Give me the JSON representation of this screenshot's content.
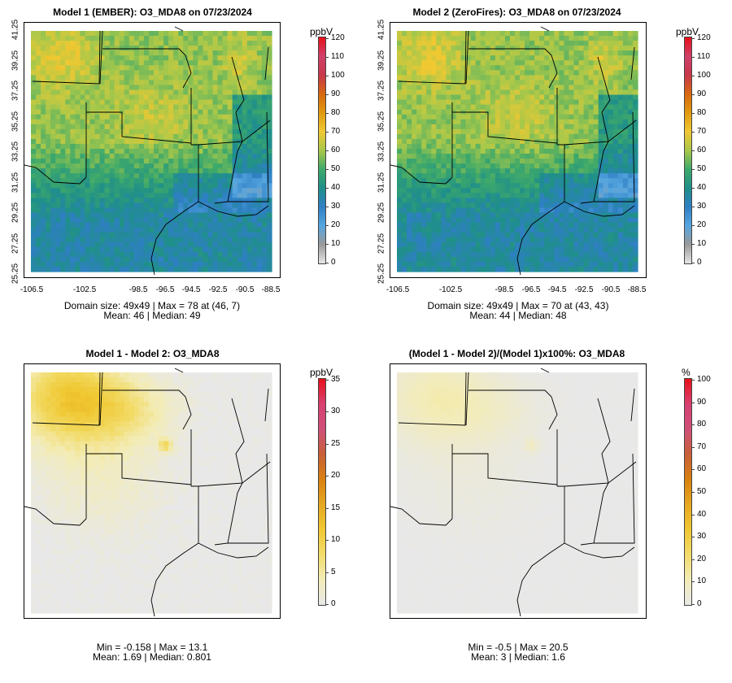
{
  "panels": [
    {
      "id": "p1",
      "title": "Model 1 (EMBER): O3_MDA8 on 07/23/2024",
      "unit": "ppbV",
      "colorbar": "ozone",
      "ticks": [
        "120",
        "110",
        "100",
        "90",
        "80",
        "70",
        "60",
        "50",
        "40",
        "30",
        "20",
        "10",
        "0"
      ],
      "yticks": [
        "41.25",
        "39.25",
        "37.25",
        "35.25",
        "33.25",
        "31.25",
        "29.25",
        "27.25",
        "25.25"
      ],
      "xticks": [
        "-106.5",
        "-102.5",
        "-98.5",
        "-96.5",
        "-94.5",
        "-92.5",
        "-90.5",
        "-88.5"
      ],
      "stats1": "Domain size: 49x49 | Max = 78 at (46, 7)",
      "stats2": "Mean: 46 |  Median: 49",
      "max_value": 78
    },
    {
      "id": "p2",
      "title": "Model 2 (ZeroFires): O3_MDA8 on 07/23/2024",
      "unit": "ppbV",
      "colorbar": "ozone",
      "ticks": [
        "120",
        "110",
        "100",
        "90",
        "80",
        "70",
        "60",
        "50",
        "40",
        "30",
        "20",
        "10",
        "0"
      ],
      "yticks": [
        "41.25",
        "39.25",
        "37.25",
        "35.25",
        "33.25",
        "31.25",
        "29.25",
        "27.25",
        "25.25"
      ],
      "xticks": [
        "-106.5",
        "-102.5",
        "-98.5",
        "-96.5",
        "-94.5",
        "-92.5",
        "-90.5",
        "-88.5"
      ],
      "stats1": "Domain size: 49x49 | Max = 70 at (43, 43)",
      "stats2": "Mean: 44 |  Median: 48",
      "max_value": 70
    },
    {
      "id": "p3",
      "title": "Model 1 - Model 2: O3_MDA8",
      "unit": "ppbV",
      "colorbar": "diff",
      "ticks": [
        "35",
        "30",
        "25",
        "20",
        "15",
        "10",
        "5",
        "0"
      ],
      "stats1": "Min = -0.158 | Max = 13.1",
      "stats2": "Mean: 1.69 |  Median: 0.801",
      "max_value": 13.1
    },
    {
      "id": "p4",
      "title": "(Model 1 - Model 2)/(Model 1)x100%: O3_MDA8",
      "unit": "%",
      "colorbar": "diff",
      "ticks": [
        "100",
        "90",
        "80",
        "70",
        "60",
        "50",
        "40",
        "30",
        "20",
        "10",
        "0"
      ],
      "stats1": "Min = -0.5 | Max = 20.5",
      "stats2": "Mean: 3 |  Median: 1.6",
      "max_value": 20.5
    }
  ],
  "colors": {
    "ozone_scale": [
      "#e6e6e6",
      "#9a9a9a",
      "#56a6e0",
      "#2f7fc4",
      "#1f8f8a",
      "#3ea96a",
      "#a8c84a",
      "#f0c832",
      "#e09a10",
      "#d86810",
      "#c8384a",
      "#d0406a",
      "#e8101a"
    ],
    "diff_scale": [
      "#e8e8e8",
      "#f3ecb8",
      "#f2dc6a",
      "#f0c832",
      "#e6a820",
      "#d88010",
      "#c86038",
      "#d0507a",
      "#d84070",
      "#e8101a"
    ],
    "land_gray": "#e6e6e6",
    "border": "#000000"
  }
}
